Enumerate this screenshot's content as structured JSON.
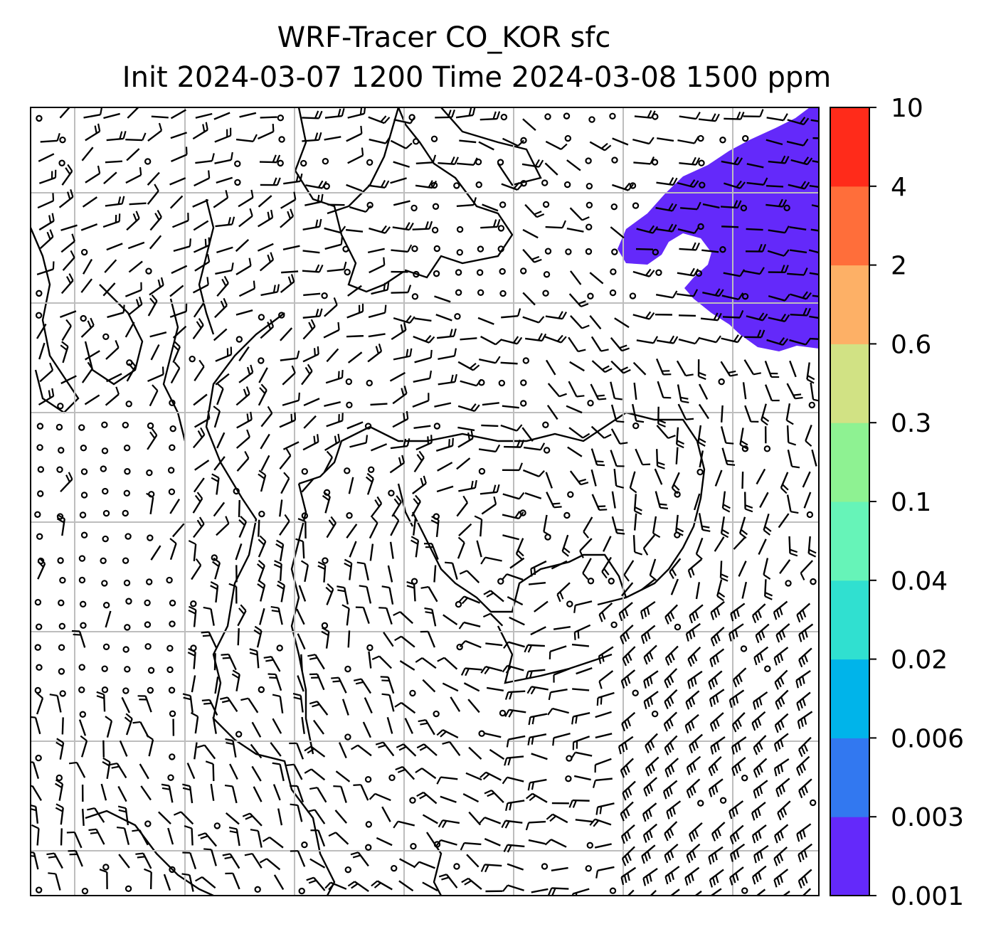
{
  "title": {
    "line1": "WRF-Tracer CO_KOR sfc",
    "line2": "Init 2024-03-07 1200 Time 2024-03-08 1500 ppm"
  },
  "colorbar": {
    "levels": [
      "0.001",
      "0.003",
      "0.006",
      "0.02",
      "0.04",
      "0.1",
      "0.3",
      "0.6",
      "2",
      "4",
      "10"
    ],
    "colors": [
      "#6429fa",
      "#3278f0",
      "#00b4ea",
      "#30e0d0",
      "#66f4b8",
      "#8ef292",
      "#d1e284",
      "#fdb066",
      "#ff6e3a",
      "#ff2b1a"
    ]
  },
  "plume": {
    "color": "#6429fa",
    "level_label": "0.001"
  },
  "map": {
    "grid_color": "#bdbdbd",
    "line_color": "#000000"
  }
}
